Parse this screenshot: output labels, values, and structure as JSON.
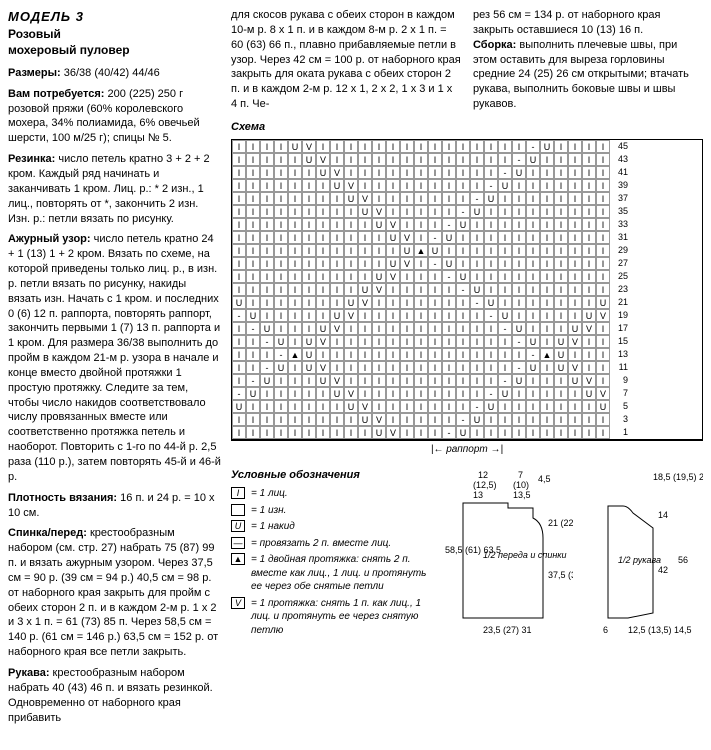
{
  "title": "МОДЕЛЬ 3",
  "subtitle": "Розовый\nмохеровый пуловер",
  "left": {
    "sizes": {
      "label": "Размеры:",
      "text": "36/38 (40/42) 44/46"
    },
    "materials": {
      "label": "Вам потребуется:",
      "text": "200 (225) 250 г розовой пряжи (60% королевского мохера, 34% полиамида, 6% овечьей шерсти, 100 м/25 г); спицы № 5."
    },
    "rib": {
      "label": "Резинка:",
      "text": "число петель кратно 3 + 2 + 2 кром. Каждый ряд начинать и заканчивать 1 кром. Лиц. р.: * 2 изн., 1 лиц., повторять от *, закончить 2 изн. Изн. р.: петли вязать по рисунку."
    },
    "lace": {
      "label": "Ажурный узор:",
      "text": "число петель кратно 24 + 1 (13) 1 + 2 кром. Вязать по схеме, на которой приведены только лиц. р., в изн. р. петли вязать по рисунку, накиды вязать изн. Начать с 1 кром. и последних 0 (6) 12 п. раппорта, повторять раппорт, закончить первыми 1 (7) 13 п. раппорта и 1 кром. Для размера 36/38 выполнить до пройм в каждом 21-м р. узора в начале и конце вместо двойной протяжки 1 простую протяжку. Следите за тем, чтобы число накидов соответствовало числу провязанных вместе или соответственно протяжка петель и наоборот. Повторить с 1-го по 44-й р. 2,5 раза (110 р.), затем повторять 45-й и 46-й р."
    },
    "gauge": {
      "label": "Плотность вязания:",
      "text": "16 п. и 24 р. = 10 x 10 см."
    },
    "back": {
      "label": "Спинка/перед:",
      "text": "крестообразным набором (см. стр. 27) набрать 75 (87) 99 п. и вязать ажурным узором. Через 37,5 см = 90 р. (39 см = 94 р.) 40,5 см = 98 р. от наборного края закрыть для пройм с обеих сторон 2 п. и в каждом 2-м р. 1 x 2 и 3 x 1 п. = 61 (73) 85 п. Через 58,5 см = 140 р. (61 см = 146 р.) 63,5 см = 152 р. от наборного края все петли закрыть."
    },
    "sleeve": {
      "label": "Рукава:",
      "text": "крестообразным набором набрать 40 (43) 46 п. и вязать резинкой. Одновременно от наборного края прибавить"
    }
  },
  "topRight": {
    "col1": "для скосов рукава с обеих сторон в каждом 10-м р. 8 x 1 п. и в каждом 8-м р. 2 x 1 п. = 60 (63) 66 п., плавно прибавляемые петли в узор. Через 42 см = 100 р. от наборного края закрыть для оката рукава с обеих сторон 2 п. и в каждом 2-м р. 12 x 1, 2 x 2, 1 x 3 и 1 x 4 п. Че-",
    "col2": "рез 56 см = 134 р. от наборного края закрыть оставшиеся 10 (13) 16 п.",
    "assembly": {
      "label": "Сборка:",
      "text": "выполнить плечевые швы, при этом оставить для выреза горловины средние 24 (25) 26 см открытыми; втачать рукава, выполнить боковые швы и швы рукавов."
    }
  },
  "chartLabel": "Схема",
  "rapportLabel": "раппорт",
  "legendTitle": "Условные обозначения",
  "legend": [
    {
      "sym": "I",
      "text": "= 1 лиц."
    },
    {
      "sym": "",
      "text": "= 1 изн."
    },
    {
      "sym": "U",
      "text": "= 1 накид"
    },
    {
      "sym": "—",
      "text": "= провязать 2 п. вместе лиц."
    },
    {
      "sym": "▲",
      "text": "= 1 двойная протяжка: снять 2 п. вместе как лиц., 1 лиц. и протянуть ее через обе снятые петли"
    },
    {
      "sym": "V",
      "text": "= 1 протяжка: снять 1 п. как лиц., 1 лиц. и протянуть ее через снятую петлю"
    }
  ],
  "chart": {
    "cols": 27,
    "rows": [
      45,
      43,
      41,
      39,
      37,
      35,
      33,
      31,
      29,
      27,
      25,
      23,
      21,
      19,
      17,
      15,
      13,
      11,
      9,
      7,
      5,
      3,
      1
    ],
    "pattern": [
      "I I I I U V I I I I I I I I I I I I I I I - U I I I I",
      "I I I I I U V I I I I I I I I I I I I I - U I I I I I",
      "I I I I I I U V I I I I I I I I I I I - U I I I I I I",
      "I I I I I I I U V I I I I I I I I I - U I I I I I I I",
      "I I I I I I I I U V I I I I I I I - U I I I I I I I I",
      "I I I I I I I I I U V I I I I I - U I I I I I I I I I",
      "I I I I I I I I I I U V I I I - U I I I I I I I I I I",
      "I I I I I I I I I I I U V I - U I I I I I I I I I I I",
      "I I I I I I I I I I I I U ▲ U I I I I I I I I I I I I",
      "I I I I I I I I I I I U V I - U I I I I I I I I I I I",
      "I I I I I I I I I I U V I I I - U I I I I I I I I I I",
      "I I I I I I I I I U V I I I I I - U I I I I I I I I I",
      "U I I I I I I I U V I I I I I I I - U I I I I I I I U",
      "- U I I I I I U V I I I I I I I I I - U I I I I I U V",
      "I - U I I I U V I I I I I I I I I I I - U I I I U V I",
      "I I - U I U V I I I I I I I I I I I I I - U I U V I I",
      "I I I - ▲ U I I I I I I I I I I I I I I I - ▲ U I I I",
      "I I - U I U V I I I I I I I I I I I I I - U I U V I I",
      "I - U I I I U V I I I I I I I I I I I - U I I I U V I",
      "- U I I I I I U V I I I I I I I I I - U I I I I I U V",
      "U I I I I I I I U V I I I I I I I - U I I I I I I I U",
      "I I I I I I I I I U V I I I I I - U I I I I I I I I I",
      "I I I I I I I I I I U V I I I - U I I I I I I I I I I"
    ]
  },
  "schematic1": {
    "name": "1/2 переда и спинки",
    "dims": {
      "top1": "12",
      "top2": "7",
      "top3": "(12,5)",
      "top4": "(10)",
      "top5": "13",
      "top6": "13,5",
      "top7": "4,5",
      "left": "58,5\n(61)\n63,5",
      "right1": "21\n(22)\n23",
      "right2": "37,5\n(39)\n40,5",
      "bottom": "23,5\n(27) 31"
    }
  },
  "schematic2": {
    "name": "1/2 рукава",
    "dims": {
      "top": "18,5\n(19,5)\n20,5",
      "right1": "14",
      "right2": "42",
      "rightAll": "56",
      "bottom1": "6",
      "bottom2": "12,5\n(13,5)\n14,5"
    }
  }
}
